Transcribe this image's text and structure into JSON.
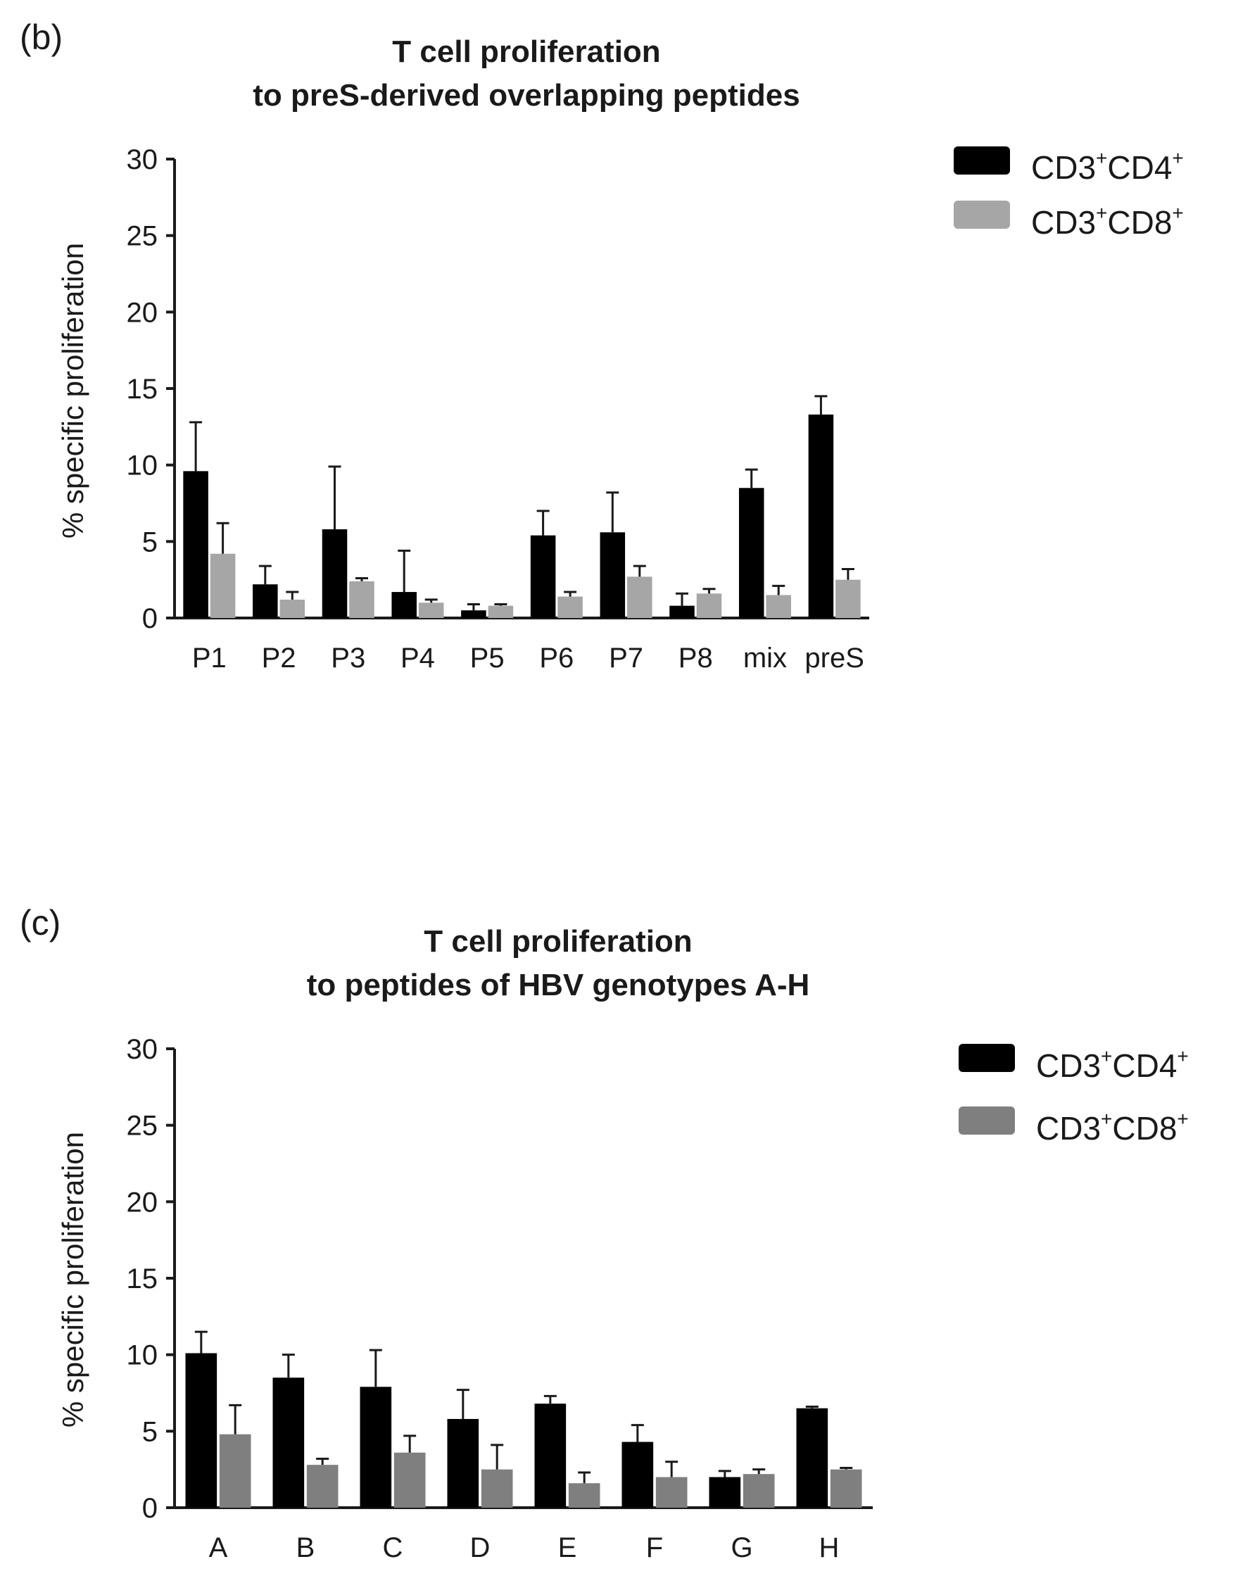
{
  "chart_data": [
    {
      "panel": "(b)",
      "type": "bar",
      "title": [
        "T cell proliferation",
        "to preS-derived overlapping peptides"
      ],
      "ylabel": "% specific proliferation",
      "ylim": [
        0,
        30
      ],
      "yticks": [
        "0",
        "5",
        "10",
        "15",
        "20",
        "25",
        "30"
      ],
      "categories": [
        "P1",
        "P2",
        "P3",
        "P4",
        "P5",
        "P6",
        "P7",
        "P8",
        "mix",
        "preS"
      ],
      "series": [
        {
          "name": "CD3+CD4+",
          "legend_main": "CD3",
          "legend_sup1": "+",
          "legend_mid": "CD4",
          "legend_sup2": "+",
          "color": "#000000",
          "values": [
            9.6,
            2.2,
            5.8,
            1.7,
            0.5,
            5.4,
            5.6,
            0.8,
            8.5,
            13.3
          ],
          "errors": [
            3.2,
            1.2,
            4.1,
            2.7,
            0.4,
            1.6,
            2.6,
            0.8,
            1.2,
            1.2
          ]
        },
        {
          "name": "CD3+CD8+",
          "legend_main": "CD3",
          "legend_sup1": "+",
          "legend_mid": "CD8",
          "legend_sup2": "+",
          "color": "#a6a6a6",
          "values": [
            4.2,
            1.2,
            2.4,
            1.0,
            0.8,
            1.4,
            2.7,
            1.6,
            1.5,
            2.5
          ],
          "errors": [
            2.0,
            0.5,
            0.2,
            0.2,
            0.1,
            0.3,
            0.7,
            0.3,
            0.6,
            0.7
          ]
        }
      ],
      "legend_position": "top-right",
      "grid": false
    },
    {
      "panel": "(c)",
      "type": "bar",
      "title": [
        "T cell proliferation",
        "to peptides of HBV genotypes A-H"
      ],
      "ylabel": "% specific proliferation",
      "ylim": [
        0,
        30
      ],
      "yticks": [
        "0",
        "5",
        "10",
        "15",
        "20",
        "25",
        "30"
      ],
      "categories": [
        "A",
        "B",
        "C",
        "D",
        "E",
        "F",
        "G",
        "H"
      ],
      "series": [
        {
          "name": "CD3+CD4+",
          "legend_main": "CD3",
          "legend_sup1": "+",
          "legend_mid": "CD4",
          "legend_sup2": "+",
          "color": "#000000",
          "values": [
            10.1,
            8.5,
            7.9,
            5.8,
            6.8,
            4.3,
            2.0,
            6.5
          ],
          "errors": [
            1.4,
            1.5,
            2.4,
            1.9,
            0.5,
            1.1,
            0.4,
            0.1
          ]
        },
        {
          "name": "CD3+CD8+",
          "legend_main": "CD3",
          "legend_sup1": "+",
          "legend_mid": "CD8",
          "legend_sup2": "+",
          "color": "#7f7f7f",
          "values": [
            4.8,
            2.8,
            3.6,
            2.5,
            1.6,
            2.0,
            2.2,
            2.5
          ],
          "errors": [
            1.9,
            0.4,
            1.1,
            1.6,
            0.7,
            1.0,
            0.3,
            0.1
          ]
        }
      ],
      "legend_position": "top-right",
      "grid": false
    }
  ]
}
